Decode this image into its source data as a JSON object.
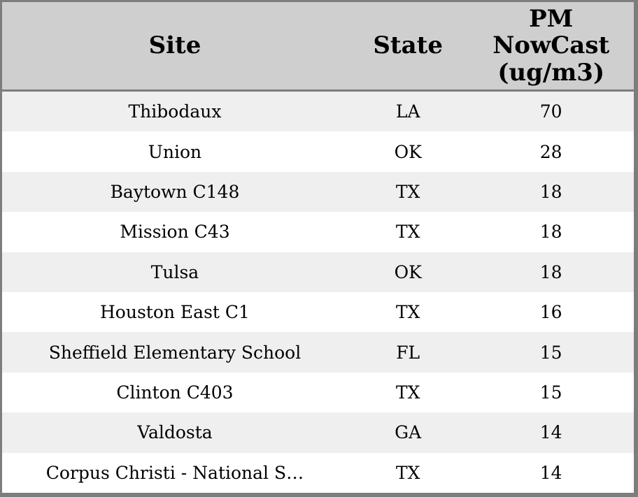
{
  "widget_title": "PM NowCast readings table",
  "colors": {
    "frame_border": "#7d7d7d",
    "header_bg": "#cfcfcf",
    "stripe_row_bg": "#efefef",
    "plain_row_bg": "#ffffff",
    "text": "#000000"
  },
  "chart_data": {
    "type": "table",
    "columns": [
      "Site",
      "State",
      "PM NowCast (ug/m3)"
    ],
    "rows": [
      [
        "Thibodaux",
        "LA",
        70
      ],
      [
        "Union",
        "OK",
        28
      ],
      [
        "Baytown C148",
        "TX",
        18
      ],
      [
        "Mission C43",
        "TX",
        18
      ],
      [
        "Tulsa",
        "OK",
        18
      ],
      [
        "Houston East C1",
        "TX",
        16
      ],
      [
        "Sheffield Elementary School",
        "FL",
        15
      ],
      [
        "Clinton C403",
        "TX",
        15
      ],
      [
        "Valdosta",
        "GA",
        14
      ],
      [
        "Corpus Christi - National S…",
        "TX",
        14
      ]
    ]
  }
}
